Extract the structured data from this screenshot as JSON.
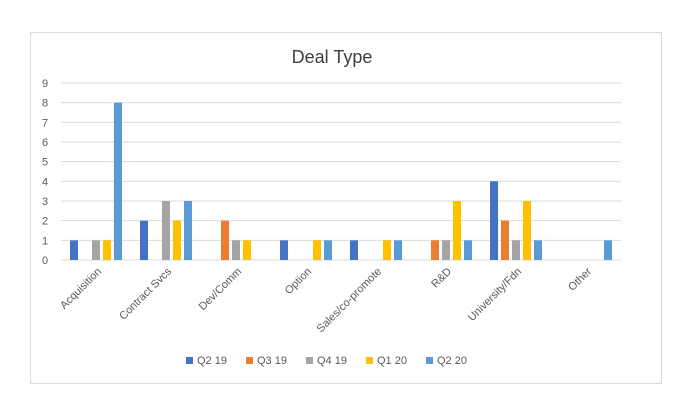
{
  "chart_data": {
    "type": "bar",
    "title": "Deal Type",
    "xlabel": "",
    "ylabel": "",
    "ylim": [
      0,
      9
    ],
    "yticks": [
      0,
      1,
      2,
      3,
      4,
      5,
      6,
      7,
      8,
      9
    ],
    "grid": true,
    "legend_position": "bottom",
    "categories": [
      "Acquisition",
      "Contract Svcs",
      "Dev/Comm",
      "Option",
      "Sales/co-promote",
      "R&D",
      "University/Fdn",
      "Other"
    ],
    "series": [
      {
        "name": "Q2 19",
        "color": "#4472c4",
        "values": [
          1,
          2,
          0,
          1,
          1,
          0,
          4,
          0
        ]
      },
      {
        "name": "Q3 19",
        "color": "#ed7d31",
        "values": [
          0,
          0,
          2,
          0,
          0,
          1,
          2,
          0
        ]
      },
      {
        "name": "Q4 19",
        "color": "#a5a5a5",
        "values": [
          1,
          3,
          1,
          0,
          0,
          1,
          1,
          0
        ]
      },
      {
        "name": "Q1 20",
        "color": "#ffc000",
        "values": [
          1,
          2,
          1,
          1,
          1,
          3,
          3,
          0
        ]
      },
      {
        "name": "Q2 20",
        "color": "#5b9bd5",
        "values": [
          8,
          3,
          0,
          1,
          1,
          1,
          1,
          1
        ]
      }
    ]
  }
}
